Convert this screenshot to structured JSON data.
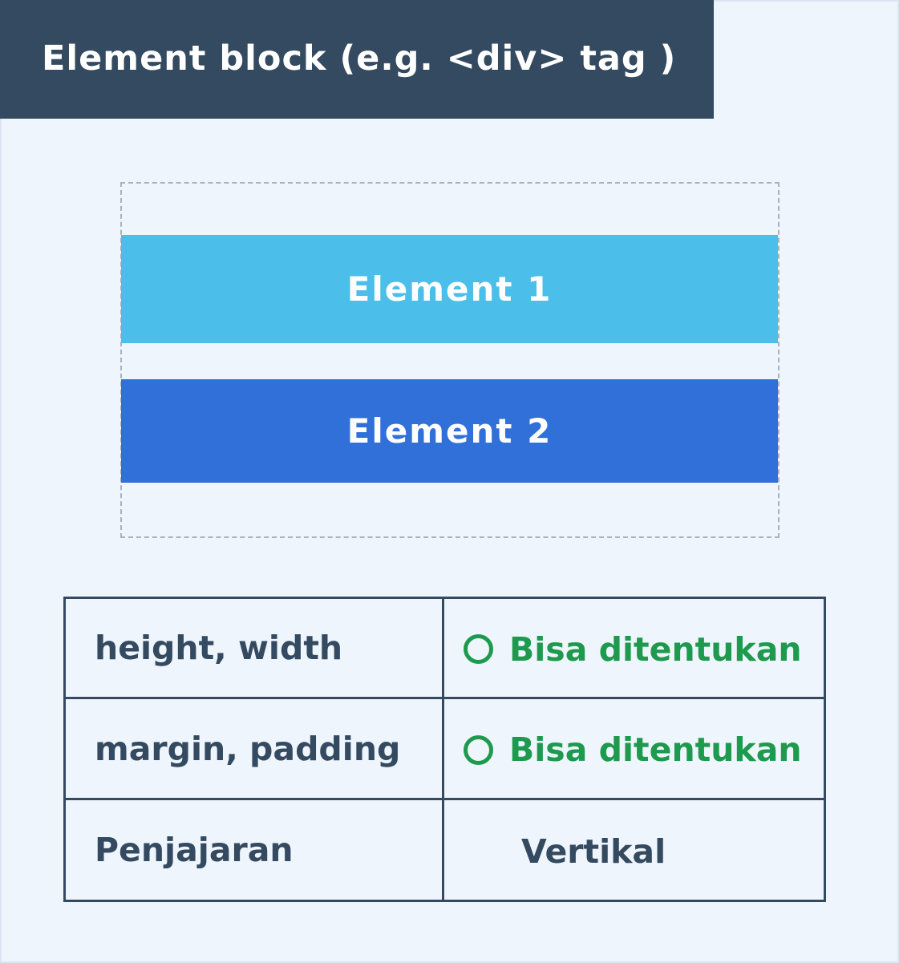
{
  "header": {
    "title": "Element block (e.g. <div> tag )"
  },
  "diagram": {
    "elements": [
      {
        "label": "Element 1",
        "color": "#4bbfea"
      },
      {
        "label": "Element 2",
        "color": "#3070d8"
      }
    ]
  },
  "table": {
    "rows": [
      {
        "property": "height, width",
        "value": "Bisa ditentukan",
        "status_icon": "circle-icon",
        "status_color": "#1e9a4e"
      },
      {
        "property": "margin, padding",
        "value": "Bisa ditentukan",
        "status_icon": "circle-icon",
        "status_color": "#1e9a4e"
      },
      {
        "property": "Penjajaran",
        "value": "Vertikal"
      }
    ]
  },
  "colors": {
    "header_bg": "#344a60",
    "background": "#eff5fc",
    "text": "#344a60",
    "ok": "#1e9a4e"
  }
}
